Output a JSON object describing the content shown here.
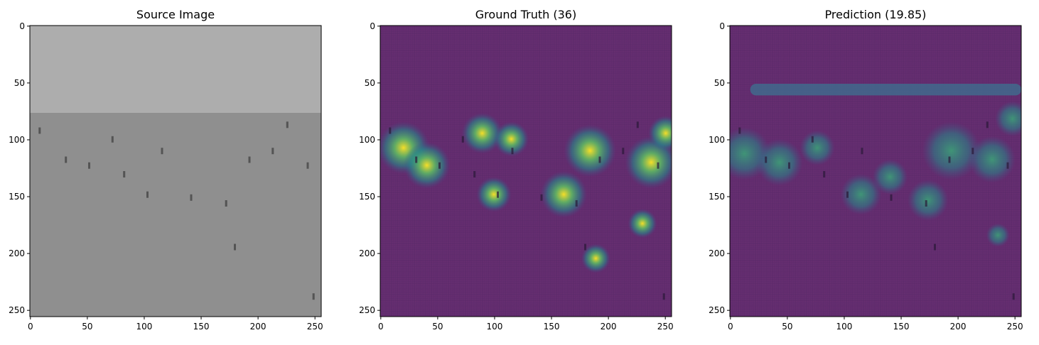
{
  "chart_data": [
    {
      "type": "image",
      "title": "Source Image",
      "xlim": [
        -0.5,
        255.5
      ],
      "ylim": [
        255.5,
        -0.5
      ],
      "xticks": [
        0,
        50,
        100,
        150,
        200,
        250
      ],
      "yticks": [
        0,
        50,
        100,
        150,
        200,
        250
      ]
    },
    {
      "type": "image",
      "title": "Ground Truth (36)",
      "xlim": [
        -0.5,
        255.5
      ],
      "ylim": [
        255.5,
        -0.5
      ],
      "xticks": [
        0,
        50,
        100,
        150,
        200,
        250
      ],
      "yticks": [
        0,
        50,
        100,
        150,
        200,
        250
      ]
    },
    {
      "type": "image",
      "title": "Prediction (19.85)",
      "xlim": [
        -0.5,
        255.5
      ],
      "ylim": [
        255.5,
        -0.5
      ],
      "xticks": [
        0,
        50,
        100,
        150,
        200,
        250
      ],
      "yticks": [
        0,
        50,
        100,
        150,
        200,
        250
      ]
    }
  ]
}
